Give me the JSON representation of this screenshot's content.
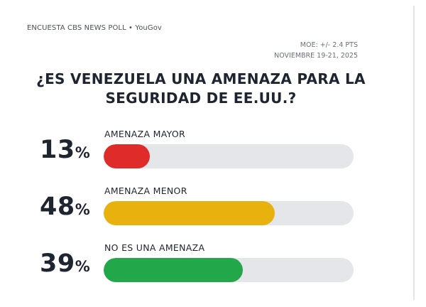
{
  "source": "ENCUESTA CBS NEWS POLL • YouGov",
  "moe": "MOE: +/- 2.4 PTS",
  "dates": "NOVIEMBRE 19-21, 2025",
  "title_line1": "¿ES VENEZUELA UNA AMENAZA PARA LA",
  "title_line2": "SEGURIDAD DE EE.UU.?",
  "percent_symbol": "%",
  "track_color": "#e4e6ea",
  "chart_data": {
    "type": "bar",
    "orientation": "horizontal",
    "title": "¿ES VENEZUELA UNA AMENAZA PARA LA SEGURIDAD DE EE.UU.?",
    "categories": [
      "AMENAZA MAYOR",
      "AMENAZA MENOR",
      "NO ES UNA AMENAZA"
    ],
    "values": [
      13,
      48,
      39
    ],
    "value_labels": [
      "13",
      "48",
      "39"
    ],
    "colors": [
      "#e02b2b",
      "#e8b10e",
      "#22a84a"
    ],
    "xlim": [
      0,
      70
    ],
    "grid": false,
    "legend": false
  }
}
